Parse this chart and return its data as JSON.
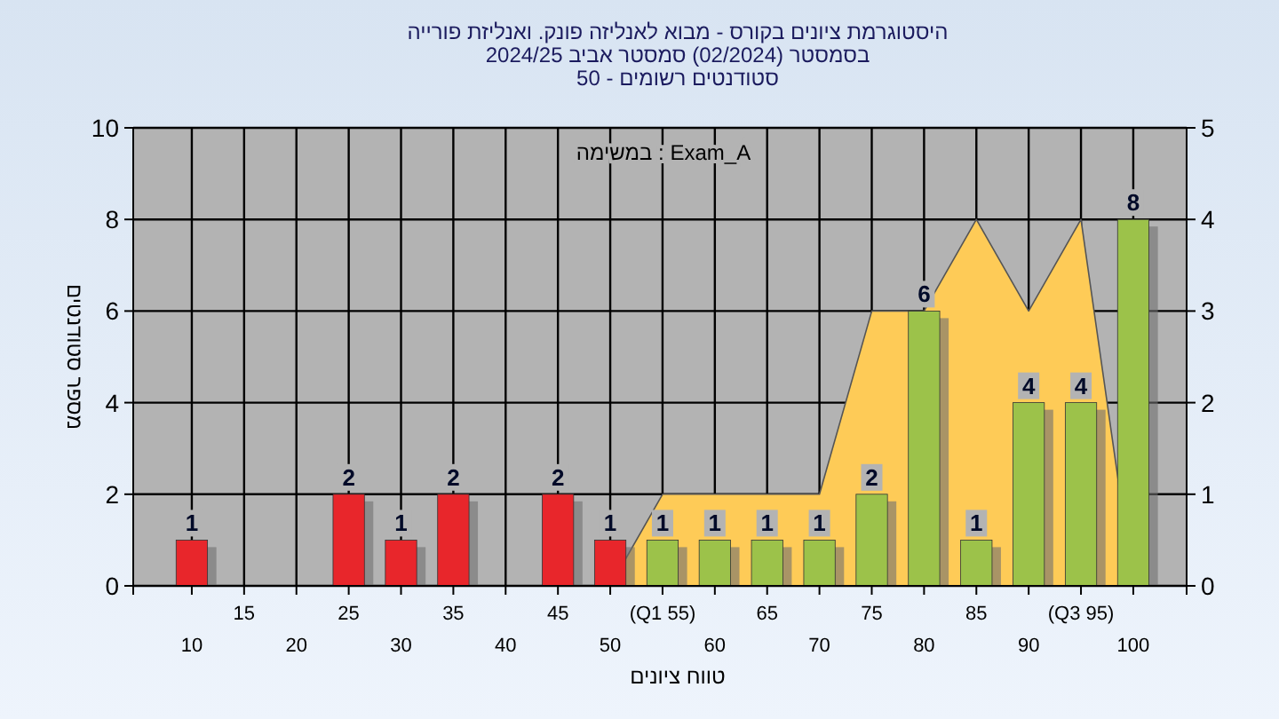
{
  "chart_data": {
    "type": "bar",
    "title": "היסטוגרמת ציונים בקורס - מבוא לאנליזה פונק. ואנליזת פורייה",
    "subtitle": "בסמסטר  (02/2024)  סמסטר אביב 2024/25",
    "annotations": [
      "סטודנטים רשומים - 50",
      "במשימה : Exam_A"
    ],
    "xlabel": "טווח ציונים",
    "ylabel": "מספר סטודנטים",
    "categories": [
      "10",
      "15",
      "20",
      "25",
      "30",
      "35",
      "40",
      "45",
      "50",
      "(Q1 55)",
      "60",
      "65",
      "70",
      "75",
      "80",
      "85",
      "90",
      "(Q3 95)",
      "100"
    ],
    "series": [
      {
        "values": [
          1,
          0,
          0,
          2,
          1,
          2,
          0,
          2,
          1,
          1,
          1,
          1,
          1,
          2,
          6,
          1,
          4,
          4,
          8
        ],
        "colors": [
          "#e8262b",
          "#e8262b",
          "#e8262b",
          "#e8262b",
          "#e8262b",
          "#e8262b",
          "#e8262b",
          "#e8262b",
          "#e8262b",
          "#9cc24a",
          "#9cc24a",
          "#9cc24a",
          "#9cc24a",
          "#9cc24a",
          "#9cc24a",
          "#9cc24a",
          "#9cc24a",
          "#9cc24a",
          "#9cc24a"
        ],
        "value_labels": [
          "1",
          null,
          null,
          "2",
          "1",
          "2",
          null,
          "2",
          "1",
          "1",
          "1",
          "1",
          "1",
          "2",
          "6",
          "1",
          "4",
          "4",
          "8"
        ]
      },
      {
        "type": "area",
        "axis": "y2",
        "color": "#fecb57",
        "values": [
          null,
          null,
          null,
          null,
          null,
          null,
          null,
          null,
          0,
          1,
          1,
          1,
          1,
          3,
          3,
          4,
          3,
          4,
          0
        ]
      }
    ],
    "ylim": [
      0,
      10
    ],
    "yticks": [
      0,
      2,
      4,
      6,
      8,
      10
    ],
    "y2lim": [
      0,
      5
    ],
    "y2ticks": [
      0,
      1,
      2,
      3,
      4,
      5
    ],
    "grid": true
  }
}
